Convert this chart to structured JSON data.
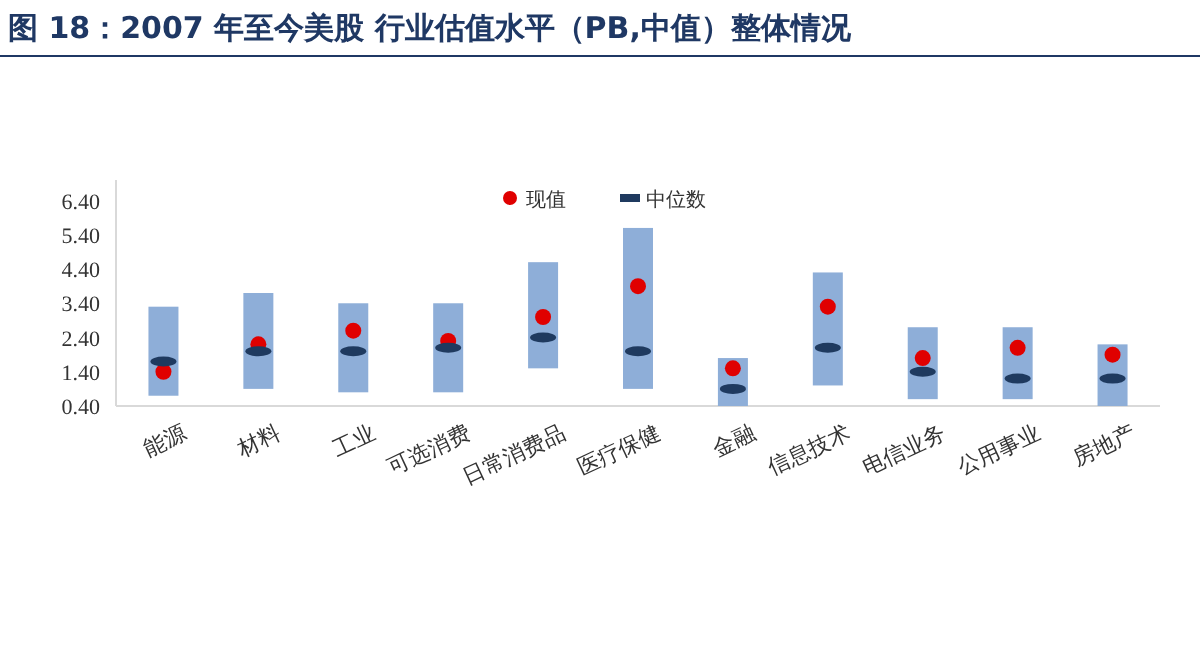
{
  "chart_data": {
    "type": "bar",
    "title": "图 18：2007 年至今美股 行业估值水平（PB,中值）整体情况",
    "categories": [
      "能源",
      "材料",
      "工业",
      "可选消费",
      "日常消费品",
      "医疗保健",
      "金融",
      "信息技术",
      "电信业务",
      "公用事业",
      "房地产"
    ],
    "series": [
      {
        "color": "#8eaed8",
        "base": [
          0.7,
          0.9,
          0.8,
          0.8,
          1.5,
          0.9,
          0.4,
          1.0,
          0.6,
          0.6,
          0.4
        ],
        "values": [
          2.6,
          2.8,
          2.6,
          2.6,
          3.1,
          4.7,
          1.4,
          3.3,
          2.1,
          2.1,
          1.8
        ]
      },
      {
        "type": "scatter",
        "name": "现值",
        "color": "#e00000",
        "marker": "circle",
        "values": [
          1.4,
          2.2,
          2.6,
          2.3,
          3.0,
          3.9,
          1.5,
          3.3,
          1.8,
          2.1,
          1.9
        ]
      },
      {
        "type": "scatter",
        "name": "中位数",
        "color": "#1f3a5f",
        "values": [
          1.7,
          2.0,
          2.0,
          2.1,
          2.4,
          2.0,
          0.9,
          2.1,
          1.4,
          1.2,
          1.2
        ]
      }
    ],
    "ylim": [
      0.4,
      7.0
    ],
    "yticks": [
      {
        "value": 0.4,
        "label": "0.40"
      },
      {
        "value": 1.4,
        "label": "1.40"
      },
      {
        "value": 2.4,
        "label": "2.40"
      },
      {
        "value": 3.4,
        "label": "3.40"
      },
      {
        "value": 4.4,
        "label": "4.40"
      },
      {
        "value": 5.4,
        "label": "5.40"
      },
      {
        "value": 6.4,
        "label": "6.40"
      }
    ],
    "legend": "top",
    "grid": false
  }
}
